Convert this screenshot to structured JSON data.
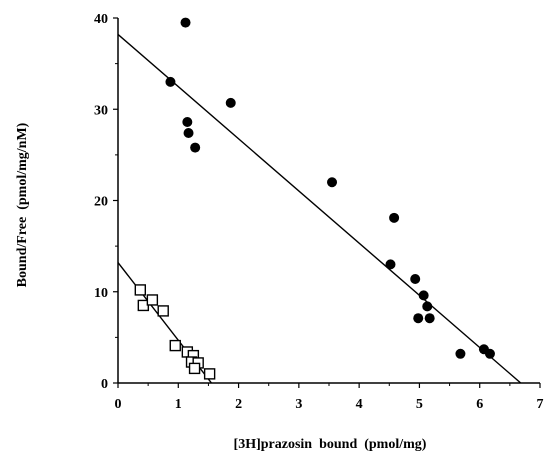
{
  "chart_data": {
    "type": "scatter",
    "xlabel": "[3H]prazosin  bound  (pmol/mg)",
    "ylabel": "Bound/Free  (pmol/mg/nM)",
    "xlim": [
      0,
      7
    ],
    "ylim": [
      0,
      40
    ],
    "xticks": [
      "0",
      "1",
      "2",
      "3",
      "4",
      "5",
      "6",
      "7"
    ],
    "yticks": [
      "0",
      "10",
      "20",
      "30",
      "40"
    ],
    "grid": false,
    "series": [
      {
        "marker": "filled-circle",
        "color": "#000000",
        "points": [
          [
            1.12,
            39.5
          ],
          [
            0.87,
            33.0
          ],
          [
            1.87,
            30.7
          ],
          [
            1.15,
            28.6
          ],
          [
            1.17,
            27.4
          ],
          [
            1.28,
            25.8
          ],
          [
            3.55,
            22.0
          ],
          [
            4.58,
            18.1
          ],
          [
            4.52,
            13.0
          ],
          [
            4.93,
            11.4
          ],
          [
            5.07,
            9.6
          ],
          [
            5.13,
            8.4
          ],
          [
            4.98,
            7.1
          ],
          [
            5.17,
            7.1
          ],
          [
            5.68,
            3.2
          ],
          [
            6.07,
            3.7
          ],
          [
            6.17,
            3.2
          ]
        ],
        "fit_line": [
          [
            0,
            38.2
          ],
          [
            6.68,
            0
          ]
        ]
      },
      {
        "marker": "open-square",
        "color": "#000000",
        "points": [
          [
            0.37,
            10.2
          ],
          [
            0.42,
            8.5
          ],
          [
            0.57,
            9.1
          ],
          [
            0.75,
            7.9
          ],
          [
            0.95,
            4.1
          ],
          [
            1.15,
            3.4
          ],
          [
            1.25,
            3.0
          ],
          [
            1.22,
            2.3
          ],
          [
            1.33,
            2.2
          ],
          [
            1.27,
            1.6
          ],
          [
            1.52,
            1.0
          ]
        ],
        "fit_line": [
          [
            0,
            13.2
          ],
          [
            1.55,
            0
          ]
        ]
      }
    ]
  }
}
